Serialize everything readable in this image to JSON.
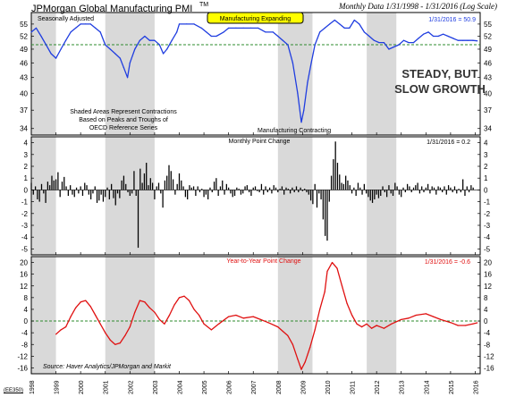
{
  "header": {
    "title": "JPMorgan Global Manufacturing PMI",
    "tm": "TM",
    "subtitle": "Monthly Data 1/31/1998 - 1/31/2016 (Log Scale)"
  },
  "corner_code": "(EE350)",
  "chart_data": [
    {
      "type": "line",
      "panel": "pmi",
      "top_left_label": "Seasonally Adjusted",
      "badge": "Manufacturing Expanding",
      "last_value_label": "1/31/2016 = 50.9",
      "note_lines": [
        "Shaded Areas Represent Contractions",
        "Based on Peaks and Troughs of",
        "OECD Reference Series"
      ],
      "contracting_label": "Manufacturing Contracting",
      "stamp_lines": [
        "STEADY, BUT",
        "SLOW GROWTH"
      ],
      "log_scale": true,
      "ylim": [
        33,
        58
      ],
      "yticks": [
        34,
        37,
        40,
        43,
        46,
        49,
        52,
        55
      ],
      "reference_line": 50,
      "x_range": [
        1998.0,
        2016.2
      ],
      "line_color": "#1f3de0",
      "series": [
        {
          "x": [
            1998.0,
            1998.2,
            1998.4,
            1998.6,
            1998.8,
            1999.0,
            1999.2,
            1999.4,
            1999.6,
            1999.8,
            2000.0,
            2000.2,
            2000.4,
            2000.6,
            2000.8,
            2001.0,
            2001.2,
            2001.4,
            2001.6,
            2001.75,
            2001.9,
            2002.0,
            2002.2,
            2002.4,
            2002.6,
            2002.8,
            2003.0,
            2003.2,
            2003.35,
            2003.5,
            2003.7,
            2003.9,
            2004.0,
            2004.3,
            2004.6,
            2004.9,
            2005.1,
            2005.3,
            2005.5,
            2005.8,
            2006.0,
            2006.3,
            2006.6,
            2006.9,
            2007.2,
            2007.5,
            2007.8,
            2008.0,
            2008.2,
            2008.4,
            2008.6,
            2008.8,
            2008.95,
            2009.05,
            2009.2,
            2009.35,
            2009.5,
            2009.7,
            2009.9,
            2010.1,
            2010.3,
            2010.5,
            2010.7,
            2010.9,
            2011.1,
            2011.3,
            2011.5,
            2011.7,
            2011.9,
            2012.1,
            2012.3,
            2012.5,
            2012.7,
            2012.9,
            2013.1,
            2013.3,
            2013.5,
            2013.7,
            2013.9,
            2014.1,
            2014.3,
            2014.5,
            2014.7,
            2014.9,
            2015.1,
            2015.3,
            2015.5,
            2015.7,
            2015.9,
            2016.08
          ],
          "values": [
            53,
            54,
            52,
            50,
            48,
            47,
            49,
            51,
            53,
            54,
            55,
            55,
            55,
            54,
            53,
            50,
            49,
            48,
            47,
            45,
            43,
            46,
            49,
            51,
            52,
            51,
            51,
            50,
            48,
            49,
            51,
            53,
            55,
            55,
            55,
            54,
            53,
            52,
            52,
            53,
            54,
            54,
            54,
            54,
            54,
            53,
            53,
            52,
            51,
            50,
            46,
            40,
            35,
            37,
            42,
            46,
            50,
            53,
            54,
            55,
            56,
            55,
            54,
            54,
            56,
            55,
            53,
            52,
            51,
            50.5,
            50.5,
            49,
            49.5,
            50,
            51,
            50.5,
            50.5,
            51.5,
            52.5,
            53,
            52,
            52,
            52.5,
            52,
            51.5,
            51,
            51,
            51,
            51,
            50.9
          ]
        }
      ]
    },
    {
      "type": "bar",
      "panel": "monthly_point_change",
      "title": "Monthly Point Change",
      "last_value_label": "1/31/2016 = 0.2",
      "ylim": [
        -5.5,
        4.5
      ],
      "yticks": [
        -5,
        -4,
        -3,
        -2,
        -1,
        0,
        1,
        2,
        3,
        4
      ],
      "x_range": [
        1998.0,
        2016.2
      ],
      "bar_color": "#000000",
      "x_start": 1998.0,
      "x_step": 0.08333,
      "values": [
        0.6,
        -0.4,
        0.3,
        -0.8,
        -1.0,
        0.5,
        -0.3,
        -1.1,
        0.7,
        0.4,
        1.2,
        0.8,
        0.9,
        1.5,
        -0.6,
        0.7,
        1.1,
        0.3,
        -0.5,
        0.4,
        -0.4,
        -0.6,
        0.2,
        -0.3,
        0.3,
        -0.5,
        0.6,
        0.4,
        -0.4,
        -0.8,
        -0.3,
        0.3,
        -1.1,
        -0.9,
        -0.4,
        -1.0,
        -0.6,
        0.2,
        -0.8,
        0.5,
        -0.7,
        -1.3,
        -0.3,
        -0.7,
        0.8,
        1.2,
        0.5,
        -0.2,
        -0.5,
        -0.3,
        1.6,
        -0.5,
        -4.9,
        1.8,
        0.6,
        1.4,
        2.3,
        0.4,
        1.0,
        0.6,
        -0.8,
        0.3,
        0.6,
        -0.3,
        -1.5,
        0.8,
        1.2,
        2.1,
        1.6,
        0.9,
        -0.4,
        0.5,
        1.4,
        0.8,
        0.3,
        -0.6,
        -0.8,
        0.4,
        0.2,
        0.3,
        -0.5,
        0.3,
        -0.2,
        0.1,
        -0.6,
        -0.4,
        -0.8,
        0.2,
        -0.2,
        0.7,
        1.0,
        -0.5,
        0.3,
        0.8,
        -0.4,
        0.5,
        0.2,
        -0.3,
        -0.6,
        -0.5,
        0.2,
        0.1,
        -0.4,
        -0.3,
        0.3,
        0.4,
        -0.2,
        -0.5,
        0.2,
        0.3,
        -0.1,
        -0.2,
        0.5,
        -0.4,
        0.3,
        -0.2,
        0.2,
        -0.3,
        0.4,
        0.2,
        -0.2,
        0.1,
        0.3,
        -0.4,
        0.2,
        0.1,
        -0.3,
        0.2,
        -0.2,
        0.3,
        -0.2,
        0.2,
        -0.1,
        0.1,
        -0.2,
        -0.4,
        -0.9,
        -1.2,
        0.5,
        -1.5,
        -0.3,
        -0.8,
        -2.5,
        -3.9,
        -4.3,
        -1.0,
        1.2,
        2.6,
        4.1,
        2.3,
        1.3,
        0.6,
        0.5,
        1.2,
        0.8,
        0.4,
        -0.3,
        0.2,
        -0.5,
        0.6,
        0.2,
        -0.4,
        0.5,
        -0.3,
        -0.6,
        -0.9,
        -1.1,
        -0.8,
        -0.4,
        -0.7,
        -0.5,
        0.3,
        -0.2,
        -0.6,
        0.4,
        -0.3,
        -0.5,
        0.6,
        0.3,
        -0.4,
        -0.6,
        0.2,
        -0.2,
        0.5,
        0.3,
        -0.2,
        0.2,
        0.4,
        0.6,
        -0.3,
        0.3,
        -0.2,
        0.2,
        0.5,
        -0.3,
        0.3,
        0.2,
        -0.4,
        0.3,
        0.2,
        -0.2,
        0.3,
        -0.4,
        0.4,
        0.2,
        -0.2,
        0.3,
        -0.3,
        0.1,
        -0.2,
        0.9,
        -0.5,
        0.3,
        -0.2,
        0.4,
        0.2
      ]
    },
    {
      "type": "line",
      "panel": "year_to_year_point_change",
      "title": "Year-to-Year Point Change",
      "last_value_label": "1/31/2016 = -0.6",
      "source": "Source: Haver Analytics/JPMorgan and Markit",
      "ylim": [
        -18,
        22
      ],
      "yticks": [
        -16,
        -12,
        -8,
        -4,
        0,
        4,
        8,
        12,
        16,
        20
      ],
      "reference_line": 0,
      "x_range": [
        1998.0,
        2016.2
      ],
      "line_color": "#e01010",
      "series": [
        {
          "x": [
            1999.0,
            1999.2,
            1999.4,
            1999.6,
            1999.8,
            2000.0,
            2000.2,
            2000.4,
            2000.6,
            2000.8,
            2001.0,
            2001.2,
            2001.4,
            2001.6,
            2001.8,
            2002.0,
            2002.2,
            2002.4,
            2002.6,
            2002.8,
            2003.0,
            2003.2,
            2003.4,
            2003.6,
            2003.8,
            2004.0,
            2004.2,
            2004.4,
            2004.6,
            2004.8,
            2005.0,
            2005.3,
            2005.6,
            2006.0,
            2006.3,
            2006.6,
            2007.0,
            2007.3,
            2007.6,
            2008.0,
            2008.2,
            2008.4,
            2008.6,
            2008.8,
            2008.95,
            2009.1,
            2009.3,
            2009.5,
            2009.7,
            2009.9,
            2010.0,
            2010.2,
            2010.4,
            2010.6,
            2010.8,
            2011.0,
            2011.2,
            2011.4,
            2011.6,
            2011.8,
            2012.0,
            2012.3,
            2012.6,
            2013.0,
            2013.3,
            2013.6,
            2014.0,
            2014.3,
            2014.6,
            2015.0,
            2015.3,
            2015.6,
            2015.9,
            2016.08
          ],
          "values": [
            -4.5,
            -3.0,
            -2.0,
            1.5,
            4.5,
            6.5,
            7.0,
            5.0,
            2.0,
            -1.0,
            -4.0,
            -6.5,
            -8.0,
            -7.5,
            -5.0,
            -2.0,
            3.0,
            7.0,
            6.5,
            4.5,
            3.0,
            0.5,
            -1.0,
            2.0,
            5.5,
            8.0,
            8.5,
            7.0,
            4.0,
            2.0,
            -1.0,
            -3.0,
            -1.0,
            1.5,
            2.0,
            1.0,
            1.5,
            0.5,
            -0.5,
            -2.0,
            -3.5,
            -5.0,
            -8.0,
            -13.0,
            -16.5,
            -14.0,
            -9.0,
            -3.0,
            4.0,
            10.0,
            17.0,
            20.0,
            18.0,
            12.0,
            6.0,
            2.0,
            -1.0,
            -2.0,
            -1.0,
            -2.5,
            -1.5,
            -2.5,
            -1.0,
            0.5,
            1.0,
            2.0,
            2.5,
            1.5,
            0.5,
            -0.5,
            -1.5,
            -1.5,
            -1.0,
            -0.6
          ]
        }
      ]
    },
    {
      "type": "axis",
      "x_tick_labels": [
        "1998",
        "1999",
        "2000",
        "2001",
        "2002",
        "2003",
        "2004",
        "2005",
        "2006",
        "2007",
        "2008",
        "2009",
        "2010",
        "2011",
        "2012",
        "2013",
        "2014",
        "2015",
        "2016"
      ],
      "contraction_periods": [
        [
          1998.0,
          1999.0
        ],
        [
          2001.0,
          2003.0
        ],
        [
          2008.0,
          2009.4
        ],
        [
          2011.6,
          2012.8
        ]
      ],
      "shade_color": "#d9d9d9"
    }
  ]
}
